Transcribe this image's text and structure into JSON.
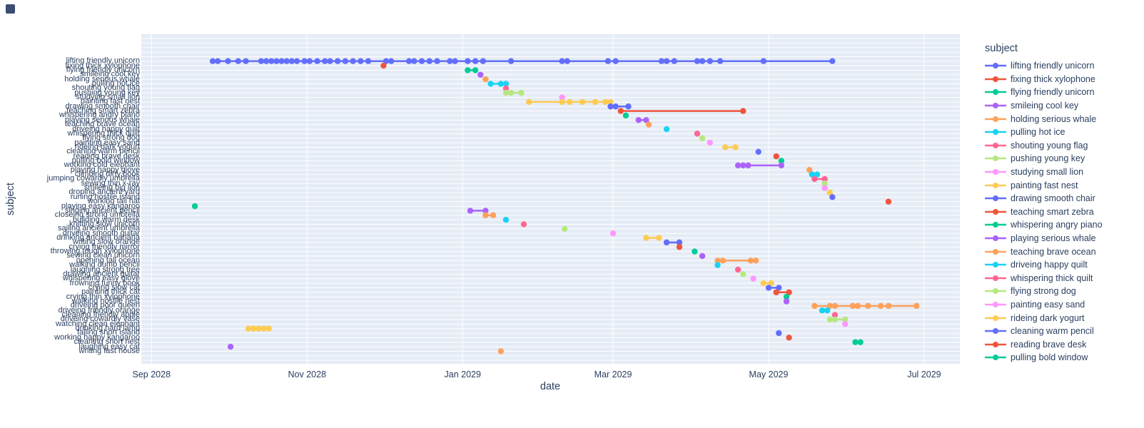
{
  "page": {
    "background": "#ffffff"
  },
  "chart_data": {
    "type": "scatter",
    "style": "plotly-timeline",
    "title": "",
    "xlabel": "date",
    "ylabel": "subject",
    "legend": {
      "title": "subject",
      "entries_visible": 23,
      "position": "right"
    },
    "grid": "on",
    "colors": {
      "plot_bg": "#E5ECF6",
      "gridline": "#FFFFFF",
      "text": "#2A3F5F"
    },
    "palette": [
      "#636EFA",
      "#EF553B",
      "#00CC96",
      "#AB63FA",
      "#FFA15A",
      "#19D3F3",
      "#FF6692",
      "#B6E880",
      "#FF97FF",
      "#FECB52"
    ],
    "x_axis": {
      "range": [
        "2028-08-28",
        "2029-07-15"
      ],
      "ticks": [
        {
          "label": "Sep 2028",
          "date": "2028-09-01"
        },
        {
          "label": "Nov 2028",
          "date": "2028-11-01"
        },
        {
          "label": "Jan 2029",
          "date": "2029-01-01"
        },
        {
          "label": "Mar 2029",
          "date": "2029-03-01"
        },
        {
          "label": "May 2029",
          "date": "2029-05-01"
        },
        {
          "label": "Jul 2029",
          "date": "2029-07-01"
        }
      ]
    },
    "series": [
      {
        "name": "lifting friendly unicorn",
        "color": "#636EFA",
        "dates": [
          "2028-09-25",
          "2028-09-27",
          "2028-10-01",
          "2028-10-05",
          "2028-10-08",
          "2028-10-14",
          "2028-10-16",
          "2028-10-18",
          "2028-10-20",
          "2028-10-22",
          "2028-10-24",
          "2028-10-26",
          "2028-10-28",
          "2028-10-31",
          "2028-11-02",
          "2028-11-05",
          "2028-11-08",
          "2028-11-10",
          "2028-11-13",
          "2028-11-16",
          "2028-11-19",
          "2028-11-22",
          "2028-11-25",
          "2028-12-02",
          "2028-12-04",
          "2028-12-11",
          "2028-12-13",
          "2028-12-16",
          "2028-12-19",
          "2028-12-22",
          "2028-12-27",
          "2028-12-29",
          "2029-01-03",
          "2029-01-06",
          "2029-01-09",
          "2029-01-20",
          "2029-02-09",
          "2029-02-11",
          "2029-02-27",
          "2029-03-02",
          "2029-03-20",
          "2029-03-22",
          "2029-03-25",
          "2029-04-03",
          "2029-04-05",
          "2029-04-08",
          "2029-04-12",
          "2029-04-29",
          "2029-05-26"
        ]
      },
      {
        "name": "fixing thick xylophone",
        "color": "#EF553B",
        "dates": [
          "2028-12-01"
        ]
      },
      {
        "name": "flying friendly unicorn",
        "color": "#00CC96",
        "dates": [
          "2029-01-03",
          "2029-01-06"
        ]
      },
      {
        "name": "smileing cool key",
        "color": "#AB63FA",
        "dates": [
          "2029-01-08"
        ]
      },
      {
        "name": "holding serious whale",
        "color": "#FFA15A",
        "dates": [
          "2029-01-10"
        ]
      },
      {
        "name": "pulling hot ice",
        "color": "#19D3F3",
        "dates": [
          "2029-01-12",
          "2029-01-16",
          "2029-01-18"
        ]
      },
      {
        "name": "shouting young flag",
        "color": "#FF6692",
        "dates": [
          "2029-01-18"
        ]
      },
      {
        "name": "pushing young key",
        "color": "#B6E880",
        "dates": [
          "2029-01-18",
          "2029-01-20",
          "2029-01-24"
        ]
      },
      {
        "name": "studying small lion",
        "color": "#FF97FF",
        "dates": [
          "2029-02-09"
        ]
      },
      {
        "name": "painting fast nest",
        "color": "#FECB52",
        "dates": [
          "2029-01-27",
          "2029-02-09",
          "2029-02-12",
          "2029-02-17",
          "2029-02-22",
          "2029-02-26",
          "2029-02-28"
        ]
      },
      {
        "name": "drawing smooth chair",
        "color": "#636EFA",
        "dates": [
          "2029-02-28",
          "2029-03-02",
          "2029-03-07"
        ]
      },
      {
        "name": "teaching smart zebra",
        "color": "#EF553B",
        "dates": [
          "2029-03-04",
          "2029-04-21"
        ]
      },
      {
        "name": "whispering angry piano",
        "color": "#00CC96",
        "dates": [
          "2029-03-06"
        ]
      },
      {
        "name": "playing serious whale",
        "color": "#AB63FA",
        "dates": [
          "2029-03-11",
          "2029-03-14"
        ]
      },
      {
        "name": "teaching brave ocean",
        "color": "#FFA15A",
        "dates": [
          "2029-03-15"
        ]
      },
      {
        "name": "driveing happy quilt",
        "color": "#19D3F3",
        "dates": [
          "2029-03-22"
        ]
      },
      {
        "name": "whispering thick quilt",
        "color": "#FF6692",
        "dates": [
          "2029-04-03"
        ]
      },
      {
        "name": "flying strong dog",
        "color": "#B6E880",
        "dates": [
          "2029-04-05"
        ]
      },
      {
        "name": "painting easy sand",
        "color": "#FF97FF",
        "dates": [
          "2029-04-08"
        ]
      },
      {
        "name": "rideing dark yogurt",
        "color": "#FECB52",
        "dates": [
          "2029-04-14",
          "2029-04-18"
        ]
      },
      {
        "name": "cleaning warm pencil",
        "color": "#636EFA",
        "dates": [
          "2029-04-27"
        ]
      },
      {
        "name": "reading brave desk",
        "color": "#EF553B",
        "dates": [
          "2029-05-04"
        ]
      },
      {
        "name": "pulling bold window",
        "color": "#00CC96",
        "dates": [
          "2029-05-06"
        ]
      },
      {
        "name": "working cold elephant",
        "color": "#AB63FA",
        "dates": [
          "2029-04-19",
          "2029-04-21",
          "2029-04-23",
          "2029-05-06"
        ]
      },
      {
        "name": "playing happy glove",
        "color": "#FFA15A",
        "dates": [
          "2029-05-17"
        ]
      },
      {
        "name": "climbing dirty book",
        "color": "#19D3F3",
        "dates": [
          "2029-05-18",
          "2029-05-20"
        ]
      },
      {
        "name": "jumping cowardly umbrella",
        "color": "#FF6692",
        "dates": [
          "2029-05-19",
          "2029-05-23"
        ]
      },
      {
        "name": "sewing thin x-ray",
        "color": "#B6E880",
        "dates": [
          "2029-05-23"
        ]
      },
      {
        "name": "smileing big lion",
        "color": "#FF97FF",
        "dates": [
          "2029-05-23"
        ]
      },
      {
        "name": "droping ancient yard",
        "color": "#FECB52",
        "dates": [
          "2029-05-25"
        ]
      },
      {
        "name": "runing hostile island",
        "color": "#636EFA",
        "dates": [
          "2029-05-26"
        ]
      },
      {
        "name": "working tall hat",
        "color": "#EF553B",
        "dates": [
          "2029-06-17"
        ]
      },
      {
        "name": "playing easy kangaroo",
        "color": "#00CC96",
        "dates": [
          "2028-09-18"
        ]
      },
      {
        "name": "singing ancient pencil",
        "color": "#AB63FA",
        "dates": [
          "2029-01-04",
          "2029-01-10"
        ]
      },
      {
        "name": "closeing strong umbrella",
        "color": "#FFA15A",
        "dates": [
          "2029-01-10",
          "2029-01-13"
        ]
      },
      {
        "name": "building warm desk",
        "color": "#19D3F3",
        "dates": [
          "2029-01-18"
        ]
      },
      {
        "name": "knitting slow unicorn",
        "color": "#FF6692",
        "dates": [
          "2029-01-25"
        ]
      },
      {
        "name": "sailing ancient umbrella",
        "color": "#B6E880",
        "dates": [
          "2029-02-10"
        ]
      },
      {
        "name": "driveing smooth guitar",
        "color": "#FF97FF",
        "dates": [
          "2029-03-01"
        ]
      },
      {
        "name": "drinking ancient banana",
        "color": "#FECB52",
        "dates": [
          "2029-03-14",
          "2029-03-19"
        ]
      },
      {
        "name": "writing slow orange",
        "color": "#636EFA",
        "dates": [
          "2029-03-22",
          "2029-03-27"
        ]
      },
      {
        "name": "crying friendly mirror",
        "color": "#EF553B",
        "dates": [
          "2029-03-27"
        ]
      },
      {
        "name": "throwing tough xylophone",
        "color": "#00CC96",
        "dates": [
          "2029-04-02"
        ]
      },
      {
        "name": "sewing clean unicorn",
        "color": "#AB63FA",
        "dates": [
          "2029-04-05"
        ]
      },
      {
        "name": "opening tall ocean",
        "color": "#FFA15A",
        "dates": [
          "2029-04-11",
          "2029-04-13",
          "2029-04-24",
          "2029-04-26"
        ]
      },
      {
        "name": "walking dumb pencil",
        "color": "#19D3F3",
        "dates": [
          "2029-04-11"
        ]
      },
      {
        "name": "laughing strong tree",
        "color": "#FF6692",
        "dates": [
          "2029-04-19"
        ]
      },
      {
        "name": "drawing ancient guitar",
        "color": "#B6E880",
        "dates": [
          "2029-04-21"
        ]
      },
      {
        "name": "whispering easy glove",
        "color": "#FF97FF",
        "dates": [
          "2029-04-25"
        ]
      },
      {
        "name": "frowning funny book",
        "color": "#FECB52",
        "dates": [
          "2029-04-29",
          "2029-05-02"
        ]
      },
      {
        "name": "crying slow cat",
        "color": "#636EFA",
        "dates": [
          "2029-05-01",
          "2029-05-05"
        ]
      },
      {
        "name": "painting thick cat",
        "color": "#EF553B",
        "dates": [
          "2029-05-04",
          "2029-05-09"
        ]
      },
      {
        "name": "crying thin xylophone",
        "color": "#00CC96",
        "dates": [
          "2029-05-08"
        ]
      },
      {
        "name": "walking hostile nest",
        "color": "#AB63FA",
        "dates": [
          "2029-05-08"
        ]
      },
      {
        "name": "driveing poor queen",
        "color": "#FFA15A",
        "dates": [
          "2029-05-19",
          "2029-05-25",
          "2029-05-27",
          "2029-06-03",
          "2029-06-05",
          "2029-06-09",
          "2029-06-14",
          "2029-06-17",
          "2029-06-28"
        ]
      },
      {
        "name": "driveing friendly orange",
        "color": "#19D3F3",
        "dates": [
          "2029-05-22",
          "2029-05-24"
        ]
      },
      {
        "name": "cleaning friendly apple",
        "color": "#FF6692",
        "dates": [
          "2029-05-27"
        ]
      },
      {
        "name": "driveing cowardly vase",
        "color": "#B6E880",
        "dates": [
          "2029-05-25",
          "2029-05-27",
          "2029-05-31"
        ]
      },
      {
        "name": "watching clean elephant",
        "color": "#FF97FF",
        "dates": [
          "2029-05-31"
        ]
      },
      {
        "name": "drinking hard lamp",
        "color": "#FECB52",
        "dates": [
          "2028-10-09",
          "2028-10-11",
          "2028-10-13",
          "2028-10-15",
          "2028-10-17"
        ]
      },
      {
        "name": "falling short island",
        "color": "#636EFA",
        "dates": [
          "2029-05-05"
        ]
      },
      {
        "name": "working happy kangaroo",
        "color": "#EF553B",
        "dates": [
          "2029-05-09"
        ]
      },
      {
        "name": "cleaning short nest",
        "color": "#00CC96",
        "dates": [
          "2029-06-04",
          "2029-06-06"
        ]
      },
      {
        "name": "laughing easy cat",
        "color": "#AB63FA",
        "dates": [
          "2028-10-02"
        ]
      },
      {
        "name": "writing fast house",
        "color": "#FFA15A",
        "dates": [
          "2029-01-16"
        ]
      }
    ]
  }
}
